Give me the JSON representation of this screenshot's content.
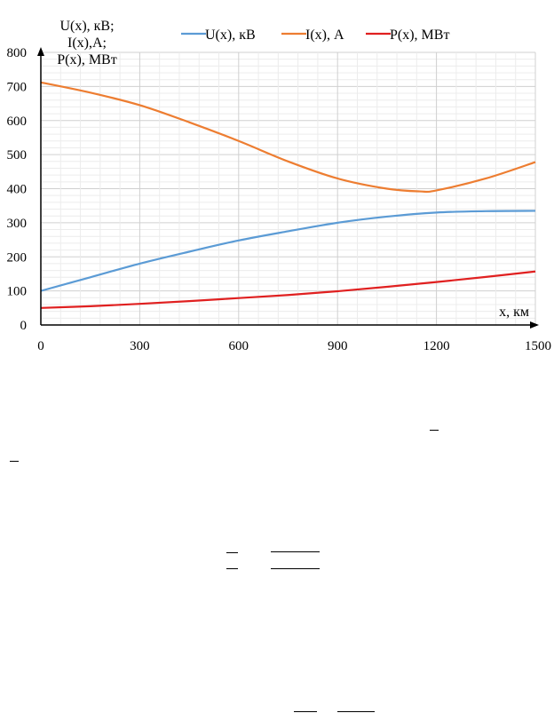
{
  "chart_data": {
    "type": "line",
    "ylabel_lines": [
      "U(x), кВ;",
      "I(x),А;",
      "P(x), МВт"
    ],
    "xlabel": "x, км",
    "xlim": [
      0,
      1500
    ],
    "ylim": [
      0,
      800
    ],
    "x_ticks": [
      0,
      300,
      600,
      900,
      1200,
      1500
    ],
    "y_ticks": [
      0,
      100,
      200,
      300,
      400,
      500,
      600,
      700,
      800
    ],
    "grid": true,
    "legend_position": "top",
    "series": [
      {
        "name": "U(x), кВ",
        "color": "#5b9bd5",
        "x": [
          0,
          150,
          300,
          450,
          600,
          750,
          900,
          1050,
          1200,
          1350,
          1500
        ],
        "y": [
          100,
          140,
          180,
          215,
          248,
          275,
          300,
          318,
          330,
          334,
          335
        ]
      },
      {
        "name": "I(x), А",
        "color": "#ed7d31",
        "x": [
          0,
          150,
          300,
          450,
          600,
          750,
          900,
          1050,
          1150,
          1200,
          1350,
          1500
        ],
        "y": [
          712,
          682,
          645,
          595,
          540,
          480,
          430,
          400,
          392,
          395,
          430,
          478
        ]
      },
      {
        "name": "P(x), МВт",
        "color": "#e02020",
        "x": [
          0,
          150,
          300,
          450,
          600,
          750,
          900,
          1050,
          1200,
          1350,
          1500
        ],
        "y": [
          50,
          55,
          62,
          70,
          79,
          88,
          99,
          112,
          126,
          141,
          157
        ]
      }
    ]
  }
}
